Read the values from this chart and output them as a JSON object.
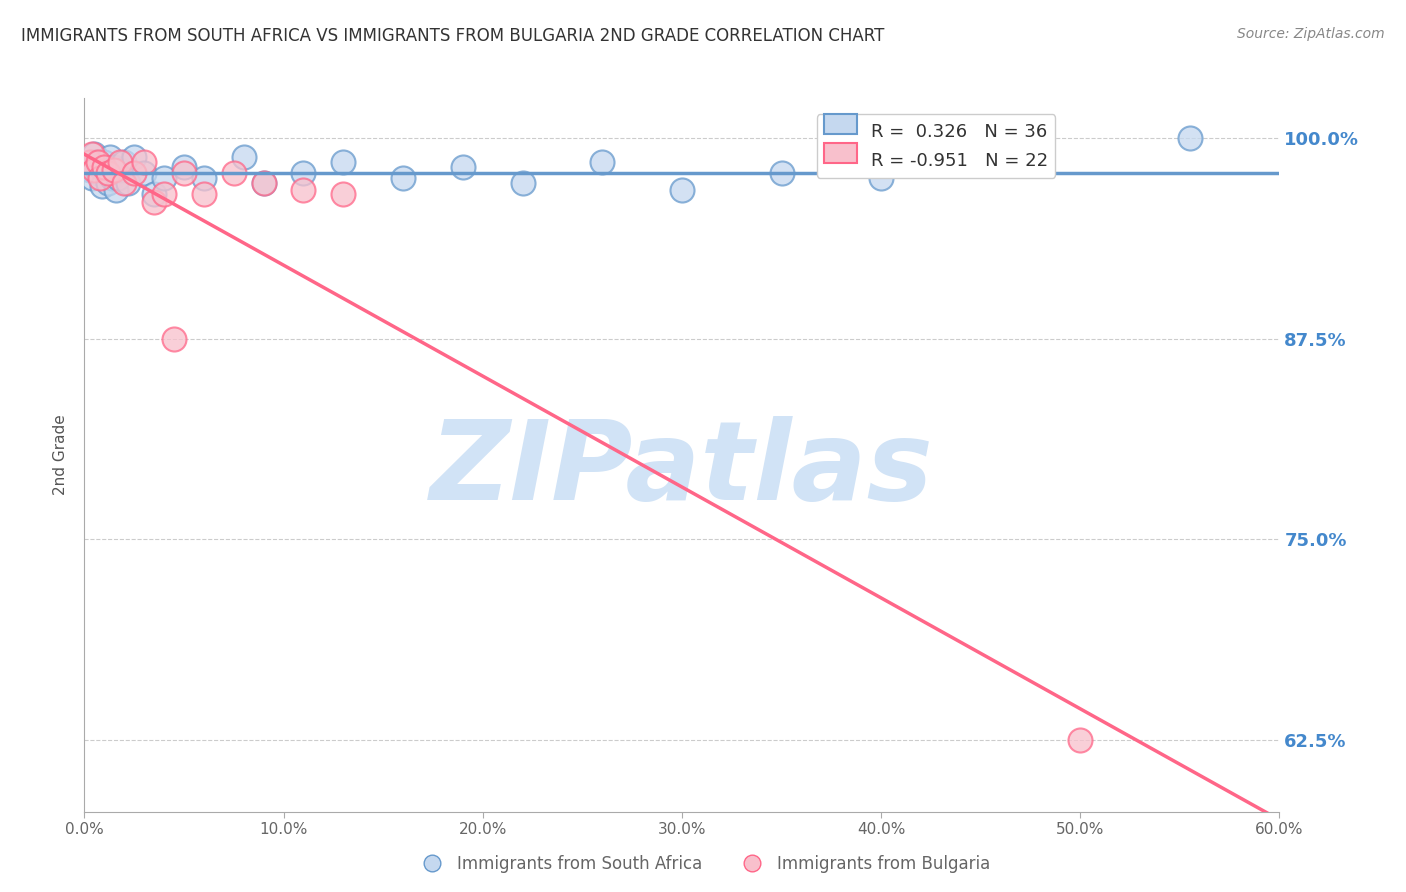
{
  "title": "IMMIGRANTS FROM SOUTH AFRICA VS IMMIGRANTS FROM BULGARIA 2ND GRADE CORRELATION CHART",
  "source": "Source: ZipAtlas.com",
  "ylabel": "2nd Grade",
  "xlim": [
    0.0,
    0.6
  ],
  "ylim": [
    0.58,
    1.025
  ],
  "xtick_labels": [
    "0.0%",
    "10.0%",
    "20.0%",
    "30.0%",
    "40.0%",
    "50.0%",
    "60.0%"
  ],
  "xtick_vals": [
    0.0,
    0.1,
    0.2,
    0.3,
    0.4,
    0.5,
    0.6
  ],
  "ytick_labels": [
    "100.0%",
    "87.5%",
    "75.0%",
    "62.5%"
  ],
  "ytick_vals": [
    1.0,
    0.875,
    0.75,
    0.625
  ],
  "grid_color": "#cccccc",
  "background_color": "#ffffff",
  "blue_color": "#6699cc",
  "pink_color": "#ff6688",
  "blue_fill": "#c5d8ef",
  "pink_fill": "#f8c0cc",
  "blue_label": "Immigrants from South Africa",
  "pink_label": "Immigrants from Bulgaria",
  "R_blue": 0.326,
  "N_blue": 36,
  "R_pink": -0.951,
  "N_pink": 22,
  "watermark": "ZIPatlas",
  "watermark_color": "#cce0f5",
  "title_color": "#333333",
  "right_axis_color": "#4488cc",
  "legend_R_blue": "R =  0.326   N = 36",
  "legend_R_pink": "R = -0.951   N = 22",
  "blue_scatter_x": [
    0.003,
    0.004,
    0.005,
    0.006,
    0.007,
    0.008,
    0.009,
    0.01,
    0.011,
    0.012,
    0.013,
    0.014,
    0.015,
    0.016,
    0.017,
    0.018,
    0.02,
    0.022,
    0.025,
    0.03,
    0.035,
    0.04,
    0.05,
    0.06,
    0.08,
    0.09,
    0.11,
    0.13,
    0.16,
    0.19,
    0.22,
    0.26,
    0.3,
    0.35,
    0.4,
    0.555
  ],
  "blue_scatter_y": [
    0.98,
    0.975,
    0.99,
    0.985,
    0.978,
    0.982,
    0.97,
    0.985,
    0.978,
    0.972,
    0.988,
    0.975,
    0.982,
    0.968,
    0.975,
    0.98,
    0.985,
    0.972,
    0.988,
    0.978,
    0.965,
    0.975,
    0.982,
    0.975,
    0.988,
    0.972,
    0.978,
    0.985,
    0.975,
    0.982,
    0.972,
    0.985,
    0.968,
    0.978,
    0.975,
    1.0
  ],
  "pink_scatter_x": [
    0.003,
    0.004,
    0.005,
    0.007,
    0.008,
    0.01,
    0.012,
    0.015,
    0.018,
    0.02,
    0.025,
    0.03,
    0.035,
    0.04,
    0.045,
    0.05,
    0.06,
    0.075,
    0.09,
    0.11,
    0.5,
    0.13
  ],
  "pink_scatter_y": [
    0.985,
    0.99,
    0.98,
    0.985,
    0.975,
    0.982,
    0.978,
    0.98,
    0.985,
    0.972,
    0.978,
    0.985,
    0.96,
    0.965,
    0.875,
    0.978,
    0.965,
    0.978,
    0.972,
    0.968,
    0.625,
    0.965
  ],
  "blue_line_x": [
    0.0,
    0.6
  ],
  "blue_line_y": [
    0.978,
    0.978
  ],
  "pink_line_x": [
    0.0,
    0.6
  ],
  "pink_line_y": [
    0.99,
    0.575
  ]
}
